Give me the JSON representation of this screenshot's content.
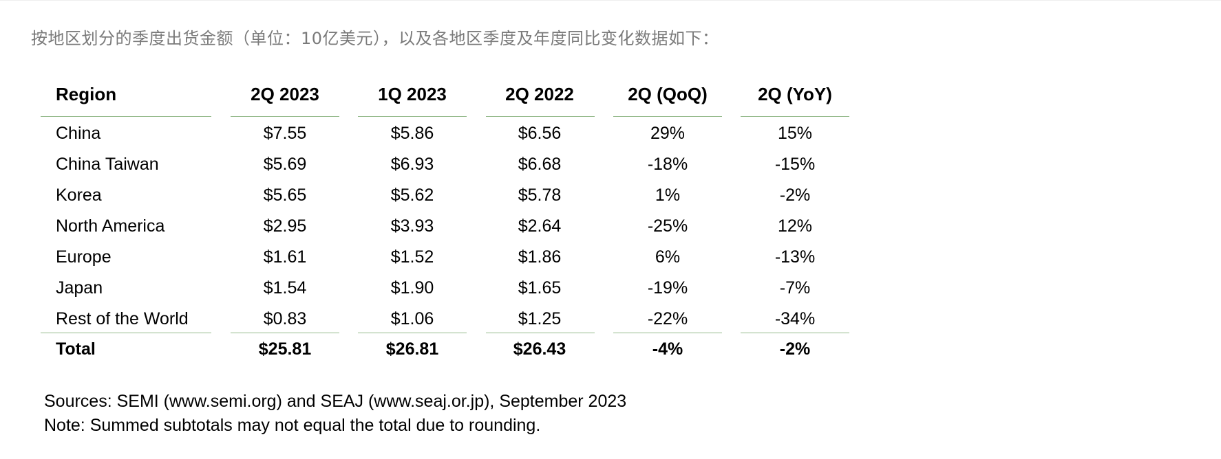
{
  "intro": "按地区划分的季度出货金额（单位：10亿美元），以及各地区季度及年度同比变化数据如下：",
  "table": {
    "headers": [
      "Region",
      "2Q 2023",
      "1Q 2023",
      "2Q 2022",
      "2Q (QoQ)",
      "2Q (YoY)"
    ],
    "rows": [
      [
        "China",
        "$7.55",
        "$5.86",
        "$6.56",
        "29%",
        "15%"
      ],
      [
        "China Taiwan",
        "$5.69",
        "$6.93",
        "$6.68",
        "-18%",
        "-15%"
      ],
      [
        "Korea",
        "$5.65",
        "$5.62",
        "$5.78",
        "1%",
        "-2%"
      ],
      [
        "North America",
        "$2.95",
        "$3.93",
        "$2.64",
        "-25%",
        "12%"
      ],
      [
        "Europe",
        "$1.61",
        "$1.52",
        "$1.86",
        "6%",
        "-13%"
      ],
      [
        "Japan",
        "$1.54",
        "$1.90",
        "$1.65",
        "-19%",
        "-7%"
      ],
      [
        "Rest of the World",
        "$0.83",
        "$1.06",
        "$1.25",
        "-22%",
        "-34%"
      ]
    ],
    "total": [
      "Total",
      "$25.81",
      "$26.81",
      "$26.43",
      "-4%",
      "-2%"
    ]
  },
  "footnotes": {
    "sources": "Sources: SEMI (www.semi.org) and SEAJ (www.seaj.or.jp), September 2023",
    "note": "Note: Summed subtotals may not equal the total due to rounding."
  },
  "colors": {
    "rule": "#93b98a",
    "intro_text": "#7a7a7a"
  }
}
